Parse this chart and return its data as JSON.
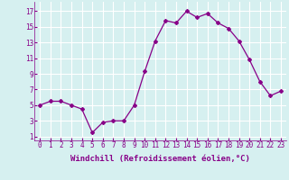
{
  "x": [
    0,
    1,
    2,
    3,
    4,
    5,
    6,
    7,
    8,
    9,
    10,
    11,
    12,
    13,
    14,
    15,
    16,
    17,
    18,
    19,
    20,
    21,
    22,
    23
  ],
  "y": [
    5.0,
    5.5,
    5.5,
    5.0,
    4.5,
    1.5,
    2.8,
    3.0,
    3.0,
    5.0,
    9.3,
    13.2,
    15.8,
    15.5,
    17.0,
    16.2,
    16.7,
    15.5,
    14.8,
    13.2,
    10.8,
    8.0,
    6.2,
    6.8
  ],
  "line_color": "#880088",
  "marker": "D",
  "marker_size": 2.0,
  "line_width": 0.9,
  "xlabel": "Windchill (Refroidissement éolien,°C)",
  "xlabel_fontsize": 6.5,
  "yticks": [
    1,
    3,
    5,
    7,
    9,
    11,
    13,
    15,
    17
  ],
  "xtick_labels": [
    "0",
    "1",
    "2",
    "3",
    "4",
    "5",
    "6",
    "7",
    "8",
    "9",
    "10",
    "11",
    "12",
    "13",
    "14",
    "15",
    "16",
    "17",
    "18",
    "19",
    "20",
    "21",
    "22",
    "23"
  ],
  "xlim": [
    -0.5,
    23.5
  ],
  "ylim": [
    0.5,
    18.2
  ],
  "bg_color": "#d6f0f0",
  "grid_color": "#ffffff",
  "tick_fontsize": 5.5,
  "label_color": "#880088"
}
